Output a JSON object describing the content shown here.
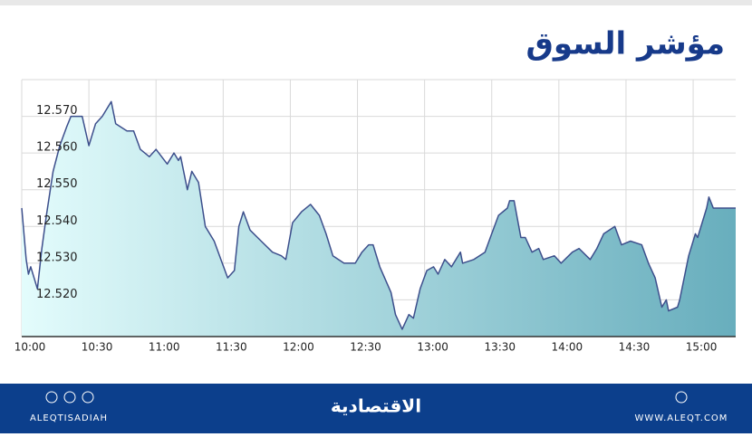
{
  "chart_data": {
    "type": "area",
    "title": "مؤشر السوق",
    "x": [
      "10:00",
      "10:02",
      "10:03",
      "10:04",
      "10:07",
      "10:09",
      "10:11",
      "10:14",
      "10:17",
      "10:20",
      "10:22",
      "10:27",
      "10:30",
      "10:33",
      "10:36",
      "10:40",
      "10:42",
      "10:47",
      "10:50",
      "10:53",
      "10:57",
      "11:00",
      "11:05",
      "11:08",
      "11:10",
      "11:11",
      "11:14",
      "11:16",
      "11:19",
      "11:22",
      "11:26",
      "11:29",
      "11:32",
      "11:35",
      "11:37",
      "11:39",
      "11:42",
      "11:47",
      "11:52",
      "11:56",
      "11:58",
      "12:01",
      "12:05",
      "12:09",
      "12:13",
      "12:16",
      "12:19",
      "12:24",
      "12:29",
      "12:32",
      "12:35",
      "12:37",
      "12:40",
      "12:45",
      "12:47",
      "12:50",
      "12:53",
      "12:55",
      "12:58",
      "13:01",
      "13:04",
      "13:06",
      "13:09",
      "13:12",
      "13:16",
      "13:17",
      "13:22",
      "13:27",
      "13:30",
      "13:33",
      "13:37",
      "13:38",
      "13:40",
      "13:43",
      "13:45",
      "13:48",
      "13:51",
      "13:53",
      "13:58",
      "14:01",
      "14:06",
      "14:09",
      "14:14",
      "14:17",
      "14:20",
      "14:25",
      "14:28",
      "14:32",
      "14:37",
      "14:40",
      "14:43",
      "14:46",
      "14:48",
      "14:49",
      "14:53",
      "14:54",
      "14:58",
      "15:01",
      "15:02",
      "15:06",
      "15:07",
      "15:09",
      "15:19"
    ],
    "values": [
      12.545,
      12.531,
      12.527,
      12.529,
      12.523,
      12.534,
      12.543,
      12.555,
      12.562,
      12.567,
      12.57,
      12.57,
      12.562,
      12.568,
      12.57,
      12.574,
      12.568,
      12.566,
      12.566,
      12.561,
      12.559,
      12.561,
      12.557,
      12.56,
      12.558,
      12.559,
      12.55,
      12.555,
      12.552,
      12.54,
      12.536,
      12.531,
      12.526,
      12.528,
      12.54,
      12.544,
      12.539,
      12.536,
      12.533,
      12.532,
      12.531,
      12.541,
      12.544,
      12.546,
      12.543,
      12.538,
      12.532,
      12.53,
      12.53,
      12.533,
      12.535,
      12.535,
      12.529,
      12.522,
      12.516,
      12.512,
      12.516,
      12.515,
      12.523,
      12.528,
      12.529,
      12.527,
      12.531,
      12.529,
      12.533,
      12.53,
      12.531,
      12.533,
      12.538,
      12.543,
      12.545,
      12.547,
      12.547,
      12.537,
      12.537,
      12.533,
      12.534,
      12.531,
      12.532,
      12.53,
      12.533,
      12.534,
      12.531,
      12.534,
      12.538,
      12.54,
      12.535,
      12.536,
      12.535,
      12.53,
      12.526,
      12.518,
      12.52,
      12.517,
      12.518,
      12.52,
      12.532,
      12.538,
      12.537,
      12.545,
      12.548,
      12.545,
      12.545
    ],
    "color": "#3d4f8c",
    "fill_colors": [
      "#e3fcfc",
      "#68aebd"
    ],
    "xlim": [
      "10:00",
      "15:19"
    ],
    "xticks": [
      "10:00",
      "10:30",
      "11:00",
      "11:30",
      "12:00",
      "12:30",
      "13:00",
      "13:30",
      "14:00",
      "14:30",
      "15:00"
    ],
    "ylim": [
      12.51,
      12.58
    ],
    "yticks": [
      {
        "value": 12.52,
        "label": "12.520"
      },
      {
        "value": 12.53,
        "label": "12.530"
      },
      {
        "value": 12.54,
        "label": "12.540"
      },
      {
        "value": 12.55,
        "label": "12.550"
      },
      {
        "value": 12.56,
        "label": "12.560"
      },
      {
        "value": 12.57,
        "label": "12.570"
      }
    ],
    "grid": true
  },
  "footer": {
    "handle": "ALEQTISADIAH",
    "brand": "الاقتصادية",
    "website": "WWW.ALEQT.COM"
  }
}
